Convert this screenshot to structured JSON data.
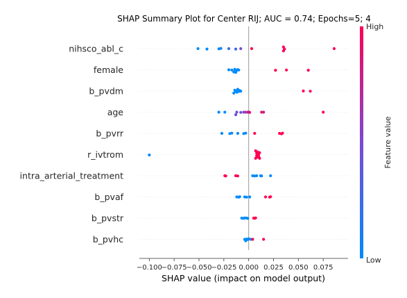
{
  "chart_data": {
    "type": "scatter",
    "title": "SHAP Summary Plot for Center RIJ; AUC = 0.74; Epochs=5; 4",
    "xlabel": "SHAP value (impact on model output)",
    "xlim": [
      -0.11,
      0.1
    ],
    "xticks": [
      -0.1,
      -0.075,
      -0.05,
      -0.025,
      0.0,
      0.025,
      0.05,
      0.075
    ],
    "xtick_labels": [
      "−0.100",
      "−0.075",
      "−0.050",
      "−0.025",
      "0.000",
      "0.025",
      "0.050",
      "0.075"
    ],
    "grid": false,
    "colorbar": {
      "label": "Feature value",
      "high_label": "High",
      "low_label": "Low",
      "low_color": "#008bfb",
      "mid_color": "#7c4ad1",
      "high_color": "#ff0052"
    },
    "features": [
      {
        "name": "nihsco_abl_c",
        "points": [
          [
            -0.051,
            0.0
          ],
          [
            -0.042,
            0.1
          ],
          [
            -0.03,
            0.05
          ],
          [
            -0.028,
            -0.05
          ],
          [
            -0.02,
            0.0
          ],
          [
            -0.013,
            0.1
          ],
          [
            -0.008,
            0.0
          ],
          [
            0.003,
            0.0
          ],
          [
            0.035,
            0.55
          ],
          [
            0.036,
            0.1
          ],
          [
            0.035,
            -0.4
          ],
          [
            0.086,
            0.0
          ]
        ],
        "values": [
          0.0,
          0.0,
          0.0,
          0.05,
          0.2,
          0.3,
          0.45,
          1.0,
          1.0,
          1.0,
          1.0,
          1.0
        ]
      },
      {
        "name": "female",
        "points": [
          [
            -0.02,
            0.0
          ],
          [
            -0.017,
            0.05
          ],
          [
            -0.015,
            0.5
          ],
          [
            -0.014,
            -0.1
          ],
          [
            -0.013,
            0.6
          ],
          [
            -0.012,
            0.1
          ],
          [
            -0.011,
            -0.05
          ],
          [
            -0.01,
            0.05
          ],
          [
            0.027,
            0.1
          ],
          [
            0.038,
            0.05
          ],
          [
            0.06,
            0.1
          ]
        ],
        "values": [
          0.0,
          0.0,
          0.0,
          0.0,
          0.0,
          0.0,
          0.0,
          0.0,
          1.0,
          1.0,
          1.0
        ]
      },
      {
        "name": "b_pvdm",
        "points": [
          [
            -0.015,
            0.5
          ],
          [
            -0.014,
            -0.2
          ],
          [
            -0.013,
            0.0
          ],
          [
            -0.012,
            0.3
          ],
          [
            -0.011,
            -0.4
          ],
          [
            -0.01,
            0.1
          ],
          [
            -0.009,
            -0.1
          ],
          [
            -0.008,
            0.05
          ],
          [
            0.055,
            0.0
          ],
          [
            0.062,
            0.05
          ]
        ],
        "values": [
          0.0,
          0.0,
          0.0,
          0.0,
          0.0,
          0.0,
          0.0,
          0.0,
          1.0,
          1.0
        ]
      },
      {
        "name": "age",
        "points": [
          [
            -0.03,
            0.0
          ],
          [
            -0.024,
            0.0
          ],
          [
            -0.013,
            0.6
          ],
          [
            -0.012,
            0.0
          ],
          [
            -0.008,
            0.05
          ],
          [
            -0.005,
            0.0
          ],
          [
            -0.003,
            0.0
          ],
          [
            -0.001,
            0.0
          ],
          [
            0.0,
            -0.05
          ],
          [
            0.001,
            0.05
          ],
          [
            0.013,
            0.0
          ],
          [
            0.015,
            0.0
          ],
          [
            0.075,
            0.0
          ]
        ],
        "values": [
          0.0,
          0.0,
          0.45,
          0.45,
          0.45,
          0.55,
          0.55,
          0.7,
          0.8,
          0.9,
          0.85,
          0.8,
          1.0
        ]
      },
      {
        "name": "b_pvrr",
        "points": [
          [
            -0.027,
            0.0
          ],
          [
            -0.019,
            0.05
          ],
          [
            -0.017,
            -0.05
          ],
          [
            -0.011,
            0.0
          ],
          [
            -0.005,
            0.05
          ],
          [
            -0.003,
            -0.05
          ],
          [
            0.006,
            0.0
          ],
          [
            0.031,
            0.0
          ],
          [
            0.033,
            0.1
          ],
          [
            0.034,
            -0.05
          ]
        ],
        "values": [
          0.0,
          0.0,
          0.0,
          0.0,
          0.0,
          0.0,
          1.0,
          1.0,
          1.0,
          1.0
        ]
      },
      {
        "name": "r_ivtrom",
        "points": [
          [
            -0.1,
            0.1
          ],
          [
            0.007,
            0.9
          ],
          [
            0.007,
            -0.9
          ],
          [
            0.008,
            0.3
          ],
          [
            0.008,
            -0.3
          ],
          [
            0.009,
            0.6
          ],
          [
            0.009,
            -0.6
          ],
          [
            0.01,
            0.0
          ],
          [
            0.01,
            0.45
          ],
          [
            0.011,
            -0.45
          ],
          [
            0.011,
            0.9
          ]
        ],
        "values": [
          0.0,
          1.0,
          1.0,
          1.0,
          1.0,
          1.0,
          1.0,
          1.0,
          1.0,
          1.0,
          1.0
        ]
      },
      {
        "name": "intra_arterial_treatment",
        "points": [
          [
            -0.024,
            0.0
          ],
          [
            -0.023,
            0.05
          ],
          [
            -0.013,
            0.0
          ],
          [
            -0.011,
            0.05
          ],
          [
            0.004,
            0.0
          ],
          [
            0.006,
            0.05
          ],
          [
            0.008,
            0.0
          ],
          [
            0.012,
            0.0
          ],
          [
            0.013,
            0.05
          ],
          [
            0.022,
            0.0
          ]
        ],
        "values": [
          1.0,
          1.0,
          1.0,
          1.0,
          0.0,
          0.0,
          0.0,
          0.0,
          0.0,
          0.0
        ]
      },
      {
        "name": "b_pvaf",
        "points": [
          [
            -0.012,
            0.0
          ],
          [
            -0.01,
            0.05
          ],
          [
            -0.009,
            -0.05
          ],
          [
            -0.004,
            0.0
          ],
          [
            -0.002,
            0.05
          ],
          [
            0.001,
            0.0
          ],
          [
            0.017,
            0.0
          ],
          [
            0.021,
            0.05
          ],
          [
            0.022,
            -0.05
          ]
        ],
        "values": [
          0.0,
          0.0,
          0.0,
          0.0,
          0.0,
          0.0,
          1.0,
          1.0,
          1.0
        ]
      },
      {
        "name": "b_pvstr",
        "points": [
          [
            -0.007,
            0.0
          ],
          [
            -0.005,
            0.05
          ],
          [
            -0.004,
            -0.05
          ],
          [
            -0.002,
            0.0
          ],
          [
            -0.001,
            0.05
          ],
          [
            0.005,
            0.0
          ],
          [
            0.006,
            0.05
          ],
          [
            0.007,
            -0.05
          ]
        ],
        "values": [
          0.0,
          0.0,
          0.0,
          0.0,
          0.0,
          1.0,
          1.0,
          1.0
        ]
      },
      {
        "name": "b_pvhc",
        "points": [
          [
            -0.004,
            0.0
          ],
          [
            -0.003,
            0.35
          ],
          [
            -0.002,
            -0.05
          ],
          [
            -0.001,
            0.05
          ],
          [
            0.0,
            -0.1
          ],
          [
            0.002,
            0.0
          ],
          [
            0.004,
            0.0
          ],
          [
            0.015,
            0.0
          ]
        ],
        "values": [
          0.0,
          0.0,
          0.0,
          0.0,
          0.0,
          0.0,
          1.0,
          1.0
        ]
      }
    ]
  }
}
